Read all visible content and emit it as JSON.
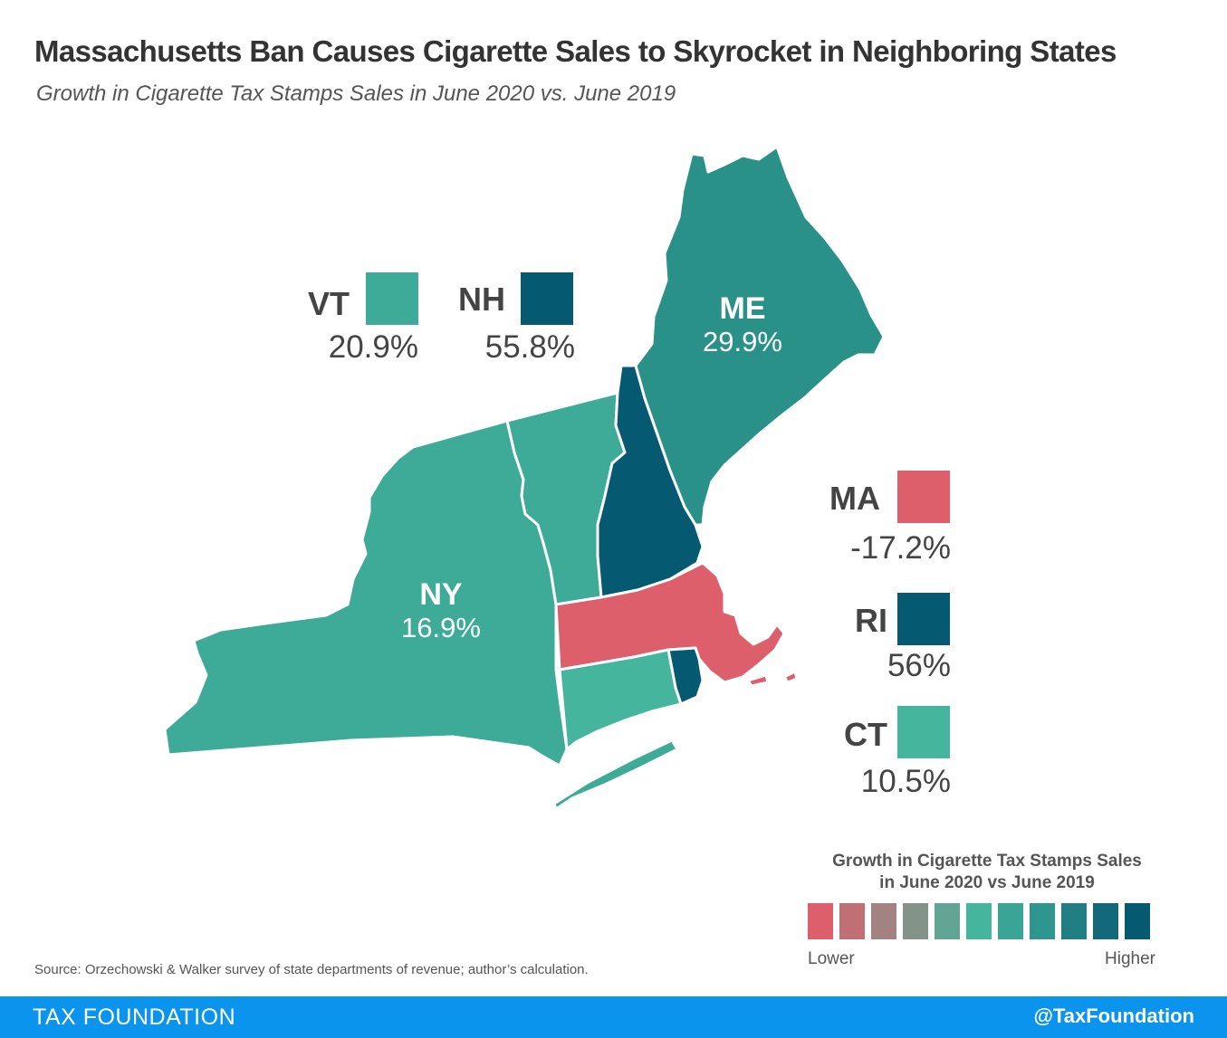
{
  "header": {
    "title": "Massachusetts Ban Causes Cigarette Sales to Skyrocket in Neighboring States",
    "subtitle": "Growth in Cigarette Tax Stamps Sales in June 2020 vs. June 2019"
  },
  "states": {
    "NY": {
      "abbr": "NY",
      "value": "16.9%",
      "color": "#3eaa98"
    },
    "VT": {
      "abbr": "VT",
      "value": "20.9%",
      "color": "#3eaa98"
    },
    "NH": {
      "abbr": "NH",
      "value": "55.8%",
      "color": "#055a71"
    },
    "ME": {
      "abbr": "ME",
      "value": "29.9%",
      "color": "#2a9189"
    },
    "MA": {
      "abbr": "MA",
      "value": "-17.2%",
      "color": "#dc5f6b"
    },
    "RI": {
      "abbr": "RI",
      "value": "56%",
      "color": "#055a71"
    },
    "CT": {
      "abbr": "CT",
      "value": "10.5%",
      "color": "#45b69d"
    }
  },
  "legend": {
    "title_line1": "Growth in Cigarette Tax Stamps Sales",
    "title_line2": "in June 2020 vs June 2019",
    "low_label": "Lower",
    "high_label": "Higher",
    "colors": [
      "#dc5f6b",
      "#c06f74",
      "#a28381",
      "#84938a",
      "#63a595",
      "#45b69d",
      "#3aa597",
      "#2f968f",
      "#217f84",
      "#13697a",
      "#055a71"
    ]
  },
  "footer": {
    "source": "Source: Orzechowski & Walker survey of state departments of revenue; author’s calculation.",
    "brand": "TAX FOUNDATION",
    "handle": "@TaxFoundation"
  }
}
